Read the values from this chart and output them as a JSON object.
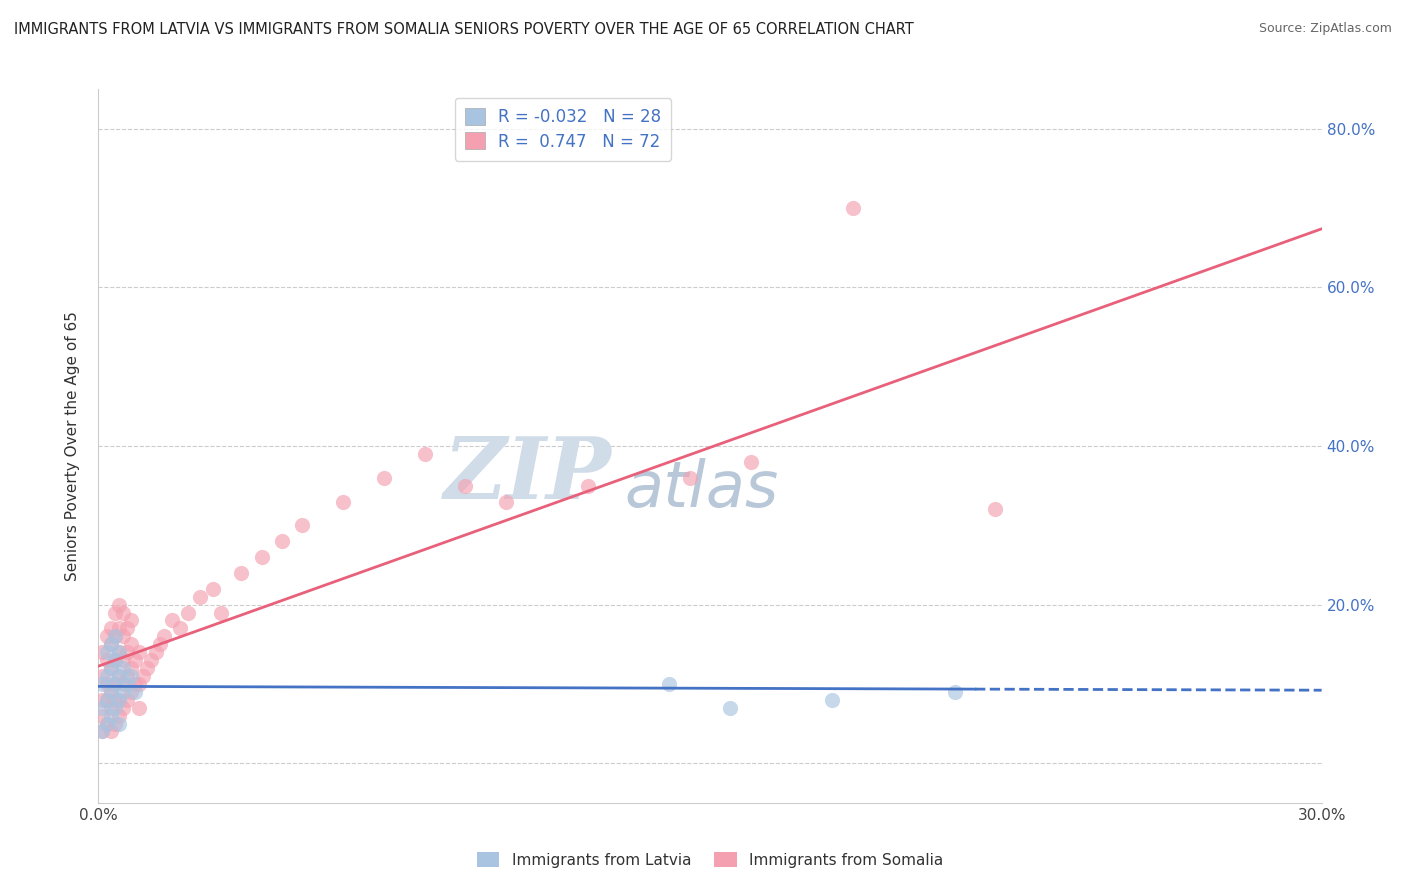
{
  "title": "IMMIGRANTS FROM LATVIA VS IMMIGRANTS FROM SOMALIA SENIORS POVERTY OVER THE AGE OF 65 CORRELATION CHART",
  "source": "Source: ZipAtlas.com",
  "ylabel": "Seniors Poverty Over the Age of 65",
  "xlim": [
    0.0,
    0.3
  ],
  "ylim": [
    -0.05,
    0.85
  ],
  "xticks": [
    0.0,
    0.05,
    0.1,
    0.15,
    0.2,
    0.25,
    0.3
  ],
  "xticklabels": [
    "0.0%",
    "",
    "",
    "",
    "",
    "",
    "30.0%"
  ],
  "yticks_right": [
    0.0,
    0.2,
    0.4,
    0.6,
    0.8
  ],
  "ytick_right_labels": [
    "",
    "20.0%",
    "40.0%",
    "60.0%",
    "80.0%"
  ],
  "latvia_R": -0.032,
  "latvia_N": 28,
  "somalia_R": 0.747,
  "somalia_N": 72,
  "latvia_color": "#a8c4e0",
  "somalia_color": "#f4a0b0",
  "latvia_line_color": "#4472c4",
  "somalia_line_color": "#e8607a",
  "legend_latvia_label": "Immigrants from Latvia",
  "legend_somalia_label": "Immigrants from Somalia",
  "watermark_zip": "ZIP",
  "watermark_atlas": "atlas",
  "watermark_color_zip": "#d0dce8",
  "watermark_color_atlas": "#b8c8d8",
  "latvia_x": [
    0.001,
    0.001,
    0.001,
    0.002,
    0.002,
    0.002,
    0.002,
    0.003,
    0.003,
    0.003,
    0.003,
    0.004,
    0.004,
    0.004,
    0.004,
    0.005,
    0.005,
    0.005,
    0.005,
    0.006,
    0.006,
    0.007,
    0.008,
    0.009,
    0.14,
    0.155,
    0.18,
    0.21
  ],
  "latvia_y": [
    0.04,
    0.07,
    0.1,
    0.05,
    0.08,
    0.11,
    0.14,
    0.06,
    0.09,
    0.12,
    0.15,
    0.07,
    0.1,
    0.13,
    0.16,
    0.05,
    0.08,
    0.11,
    0.14,
    0.09,
    0.12,
    0.1,
    0.11,
    0.09,
    0.1,
    0.07,
    0.08,
    0.09
  ],
  "somalia_x": [
    0.001,
    0.001,
    0.001,
    0.001,
    0.001,
    0.002,
    0.002,
    0.002,
    0.002,
    0.002,
    0.003,
    0.003,
    0.003,
    0.003,
    0.003,
    0.003,
    0.004,
    0.004,
    0.004,
    0.004,
    0.004,
    0.004,
    0.005,
    0.005,
    0.005,
    0.005,
    0.005,
    0.005,
    0.006,
    0.006,
    0.006,
    0.006,
    0.006,
    0.007,
    0.007,
    0.007,
    0.007,
    0.008,
    0.008,
    0.008,
    0.008,
    0.009,
    0.009,
    0.01,
    0.01,
    0.01,
    0.011,
    0.012,
    0.013,
    0.014,
    0.015,
    0.016,
    0.018,
    0.02,
    0.022,
    0.025,
    0.028,
    0.03,
    0.035,
    0.04,
    0.045,
    0.05,
    0.06,
    0.07,
    0.08,
    0.09,
    0.1,
    0.12,
    0.145,
    0.16,
    0.185,
    0.22
  ],
  "somalia_y": [
    0.04,
    0.06,
    0.08,
    0.11,
    0.14,
    0.05,
    0.08,
    0.1,
    0.13,
    0.16,
    0.04,
    0.07,
    0.09,
    0.12,
    0.15,
    0.17,
    0.05,
    0.08,
    0.1,
    0.13,
    0.16,
    0.19,
    0.06,
    0.08,
    0.11,
    0.14,
    0.17,
    0.2,
    0.07,
    0.1,
    0.13,
    0.16,
    0.19,
    0.08,
    0.11,
    0.14,
    0.17,
    0.09,
    0.12,
    0.15,
    0.18,
    0.1,
    0.13,
    0.07,
    0.1,
    0.14,
    0.11,
    0.12,
    0.13,
    0.14,
    0.15,
    0.16,
    0.18,
    0.17,
    0.19,
    0.21,
    0.22,
    0.19,
    0.24,
    0.26,
    0.28,
    0.3,
    0.33,
    0.36,
    0.39,
    0.35,
    0.33,
    0.35,
    0.36,
    0.38,
    0.7,
    0.32
  ]
}
